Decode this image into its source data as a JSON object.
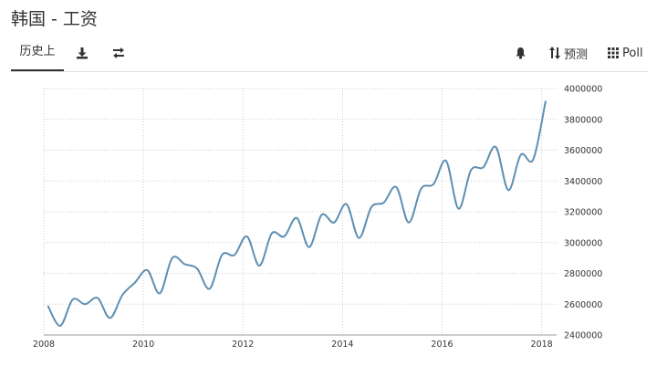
{
  "header": {
    "title": "韩国 - 工资"
  },
  "toolbar": {
    "history_tab": "历史上",
    "download_icon": "download-icon",
    "compare_icon": "exchange-icon",
    "alert_icon": "bell-icon",
    "forecast_label": "预测",
    "poll_label": "Poll"
  },
  "colors": {
    "line": "#5e8fb2",
    "grid": "#cccccc"
  },
  "chart_data": {
    "type": "line",
    "x_ticks": [
      "2008",
      "2010",
      "2012",
      "2014",
      "2016",
      "2018"
    ],
    "y_ticks": [
      "2400000",
      "2600000",
      "2800000",
      "3000000",
      "3200000",
      "3400000",
      "3600000",
      "3800000",
      "4000000"
    ],
    "xlim": [
      2008,
      2018.3
    ],
    "ylim": [
      2400000,
      4000000
    ],
    "grid": true,
    "series": [
      {
        "x": [
          2008.08,
          2008.33,
          2008.58,
          2008.83,
          2009.08,
          2009.33,
          2009.58,
          2009.83,
          2010.08,
          2010.33,
          2010.58,
          2010.83,
          2011.08,
          2011.33,
          2011.58,
          2011.83,
          2012.08,
          2012.33,
          2012.58,
          2012.83,
          2013.08,
          2013.33,
          2013.58,
          2013.83,
          2014.08,
          2014.33,
          2014.58,
          2014.83,
          2015.08,
          2015.33,
          2015.58,
          2015.83,
          2016.08,
          2016.33,
          2016.58,
          2016.83,
          2017.08,
          2017.33,
          2017.58,
          2017.83,
          2018.08
        ],
        "y": [
          2590000,
          2460000,
          2630000,
          2600000,
          2640000,
          2510000,
          2660000,
          2740000,
          2820000,
          2670000,
          2900000,
          2860000,
          2830000,
          2700000,
          2920000,
          2920000,
          3040000,
          2850000,
          3060000,
          3040000,
          3160000,
          2970000,
          3180000,
          3130000,
          3250000,
          3030000,
          3230000,
          3260000,
          3360000,
          3130000,
          3350000,
          3380000,
          3530000,
          3220000,
          3470000,
          3490000,
          3620000,
          3340000,
          3570000,
          3540000,
          3920000
        ]
      }
    ]
  }
}
